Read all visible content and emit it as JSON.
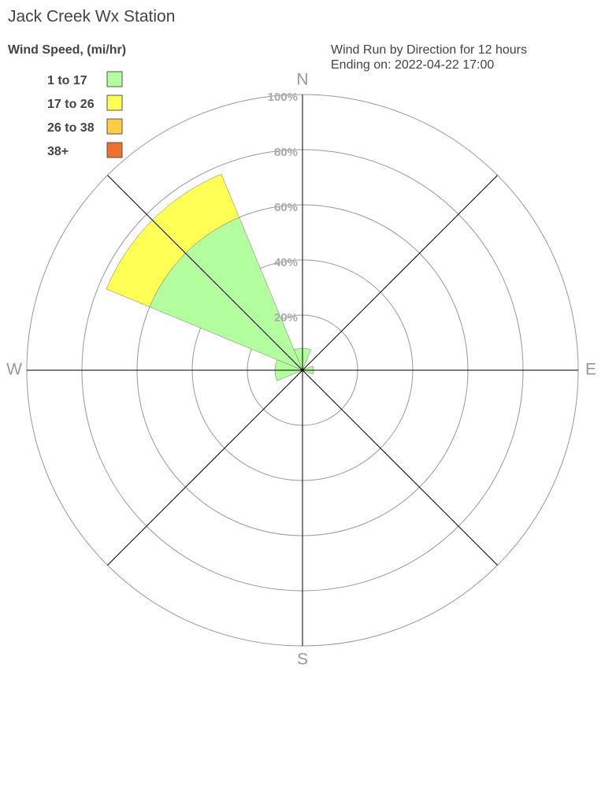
{
  "chart_data": {
    "type": "windrose",
    "title": "Jack Creek Wx Station",
    "legend_title": "Wind Speed, (mi/hr)",
    "subtitle": [
      "Wind Run by Direction for 12 hours",
      "Ending on: 2022-04-22 17:00"
    ],
    "categories": [
      "N",
      null,
      "E",
      null,
      "S",
      null,
      "W",
      null
    ],
    "series": [
      {
        "name": "1 to 17",
        "color": "#b3ffa0",
        "values": [
          8,
          0,
          4,
          0,
          0,
          0,
          10,
          60
        ]
      },
      {
        "name": "17 to 26",
        "color": "#ffff55",
        "values": [
          0,
          0,
          0,
          0,
          0,
          0,
          0,
          17
        ]
      },
      {
        "name": "26 to 38",
        "color": "#ffcc44",
        "values": [
          0,
          0,
          0,
          0,
          0,
          0,
          0,
          0
        ]
      },
      {
        "name": "38+",
        "color": "#f07030",
        "values": [
          0,
          0,
          0,
          0,
          0,
          0,
          0,
          0
        ]
      }
    ],
    "rlim": [
      0,
      100
    ],
    "rticks": [
      {
        "value": 20,
        "label": "20%"
      },
      {
        "value": 40,
        "label": "40%"
      },
      {
        "value": 60,
        "label": "60%"
      },
      {
        "value": 80,
        "label": "80%"
      },
      {
        "value": 100,
        "label": "100%"
      }
    ]
  }
}
